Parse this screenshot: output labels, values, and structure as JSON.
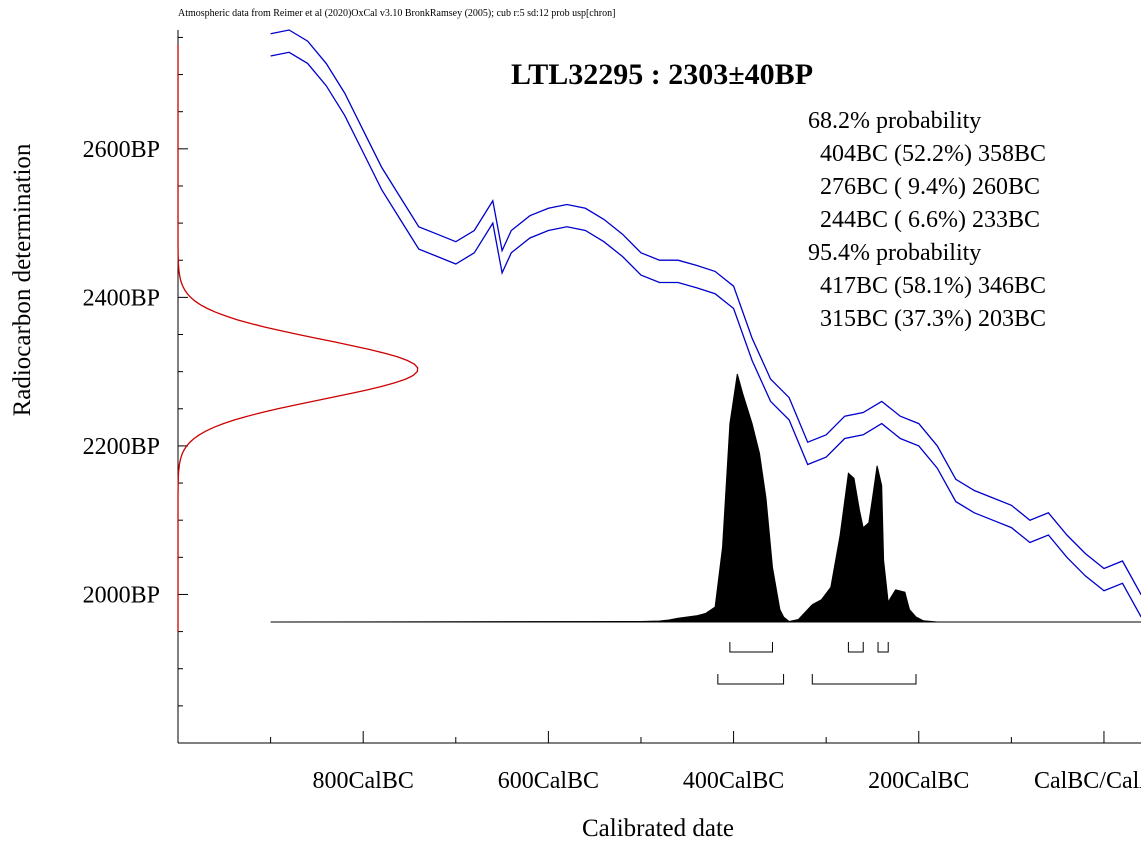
{
  "chart_data": {
    "type": "area",
    "header": "Atmospheric data from Reimer et al (2020)OxCal v3.10 BronkRamsey (2005); cub r:5 sd:12 prob usp[chron]",
    "title": "LTL32295 : 2303±40BP",
    "xlabel": "Calibrated date",
    "ylabel": "Radiocarbon determination",
    "x_tick_labels": [
      "800CalBC",
      "600CalBC",
      "400CalBC",
      "200CalBC",
      "CalBC/CalAD"
    ],
    "x_tick_values": [
      -800,
      -600,
      -400,
      -200,
      0
    ],
    "y_tick_labels": [
      "2600BP",
      "2400BP",
      "2200BP",
      "2000BP"
    ],
    "y_tick_values": [
      2600,
      2400,
      2200,
      2000
    ],
    "xlim": [
      -1000,
      40
    ],
    "ylim": [
      1800,
      2760
    ],
    "measurement": {
      "mean": 2303,
      "sd": 40,
      "color": "#cc0000"
    },
    "calibration_curve": {
      "color": "#0000cc",
      "year": [
        -900,
        -880,
        -860,
        -840,
        -820,
        -800,
        -780,
        -760,
        -740,
        -720,
        -700,
        -680,
        -660,
        -650,
        -640,
        -620,
        -600,
        -580,
        -560,
        -540,
        -520,
        -500,
        -480,
        -460,
        -440,
        -420,
        -400,
        -380,
        -360,
        -340,
        -320,
        -300,
        -280,
        -260,
        -240,
        -220,
        -200,
        -180,
        -160,
        -140,
        -120,
        -100,
        -80,
        -60,
        -40,
        -20,
        0,
        20,
        40,
        50
      ],
      "bp": [
        2740,
        2745,
        2730,
        2700,
        2660,
        2610,
        2560,
        2520,
        2480,
        2470,
        2460,
        2475,
        2515,
        2448,
        2475,
        2495,
        2505,
        2510,
        2505,
        2490,
        2470,
        2445,
        2435,
        2435,
        2428,
        2420,
        2400,
        2330,
        2275,
        2250,
        2190,
        2200,
        2225,
        2230,
        2245,
        2225,
        2215,
        2185,
        2140,
        2125,
        2115,
        2105,
        2085,
        2095,
        2065,
        2040,
        2020,
        2030,
        1985,
        1985
      ],
      "band": 15
    },
    "calibrated_distribution": {
      "year": [
        -900,
        -500,
        -480,
        -470,
        -460,
        -440,
        -430,
        -420,
        -412,
        -404,
        -396,
        -390,
        -380,
        -372,
        -365,
        -358,
        -350,
        -346,
        -340,
        -330,
        -315,
        -305,
        -295,
        -285,
        -276,
        -270,
        -264,
        -260,
        -254,
        -250,
        -245,
        -240,
        -238,
        -233,
        -230,
        -225,
        -215,
        -210,
        -203,
        -195,
        -180,
        50
      ],
      "prob": [
        0,
        0.002,
        0.004,
        0.008,
        0.015,
        0.025,
        0.035,
        0.06,
        0.3,
        0.8,
        1.0,
        0.92,
        0.8,
        0.68,
        0.5,
        0.22,
        0.05,
        0.02,
        0.002,
        0.01,
        0.07,
        0.09,
        0.14,
        0.35,
        0.6,
        0.58,
        0.45,
        0.38,
        0.4,
        0.5,
        0.63,
        0.55,
        0.25,
        0.08,
        0.1,
        0.13,
        0.12,
        0.05,
        0.02,
        0.005,
        0,
        0
      ]
    },
    "probability_text": [
      "68.2% probability",
      "  404BC (52.2%) 358BC",
      "  276BC ( 9.4%) 260BC",
      "  244BC ( 6.6%) 233BC",
      "95.4% probability",
      "  417BC (58.1%) 346BC",
      "  315BC (37.3%) 203BC"
    ],
    "range_brackets": {
      "68.2": [
        [
          -404,
          -358
        ],
        [
          -276,
          -260
        ],
        [
          -244,
          -233
        ]
      ],
      "95.4": [
        [
          -417,
          -346
        ],
        [
          -315,
          -203
        ]
      ]
    },
    "grid": false,
    "legend": "none"
  }
}
